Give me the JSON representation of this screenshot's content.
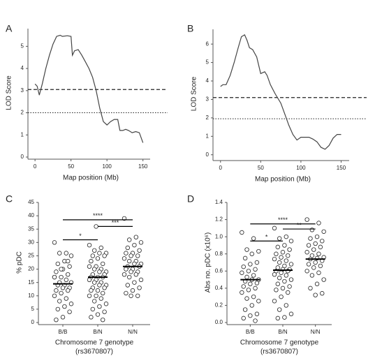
{
  "chart_data": [
    {
      "type": "line",
      "label": "A",
      "xlabel": "Map position (Mb)",
      "ylabel": "LOD Score",
      "x": [
        0,
        3,
        6,
        10,
        15,
        20,
        25,
        30,
        35,
        38,
        45,
        50,
        52,
        55,
        60,
        65,
        70,
        75,
        80,
        85,
        90,
        95,
        100,
        105,
        110,
        115,
        118,
        122,
        126,
        130,
        135,
        140,
        145,
        150
      ],
      "values": [
        3.3,
        3.2,
        2.8,
        3.3,
        4.0,
        4.6,
        5.1,
        5.45,
        5.5,
        5.45,
        5.48,
        5.45,
        4.6,
        4.8,
        4.85,
        4.6,
        4.3,
        4.0,
        3.6,
        3.0,
        2.2,
        1.6,
        1.45,
        1.6,
        1.7,
        1.7,
        1.2,
        1.2,
        1.25,
        1.2,
        1.1,
        1.15,
        1.1,
        0.65
      ],
      "color": "#444444",
      "xlim": [
        -5,
        160
      ],
      "xticks": [
        0,
        50,
        100,
        150
      ],
      "ylim": [
        0,
        5.8
      ],
      "yticks": [
        0,
        1,
        2,
        3,
        4,
        5
      ],
      "hlines": [
        {
          "y": 3.05,
          "style": "dashed"
        },
        {
          "y": 2.0,
          "style": "dotted"
        }
      ]
    },
    {
      "type": "line",
      "label": "B",
      "xlabel": "Map position (Mb)",
      "ylabel": "LOD Score",
      "x": [
        0,
        3,
        7,
        12,
        17,
        22,
        26,
        30,
        33,
        36,
        40,
        45,
        50,
        55,
        58,
        62,
        68,
        75,
        80,
        85,
        90,
        95,
        100,
        110,
        115,
        120,
        125,
        130,
        135,
        140,
        145,
        150
      ],
      "values": [
        3.7,
        3.8,
        3.8,
        4.3,
        5.0,
        5.8,
        6.4,
        6.5,
        6.2,
        5.8,
        5.7,
        5.3,
        4.4,
        4.5,
        4.3,
        3.8,
        3.3,
        2.8,
        2.2,
        1.6,
        1.1,
        0.8,
        0.95,
        0.95,
        0.85,
        0.7,
        0.4,
        0.3,
        0.5,
        0.9,
        1.1,
        1.1
      ],
      "color": "#444444",
      "xlim": [
        -5,
        160
      ],
      "xticks": [
        0,
        50,
        100,
        150
      ],
      "ylim": [
        -0.2,
        6.8
      ],
      "yticks": [
        0,
        1,
        2,
        3,
        4,
        5,
        6
      ],
      "hlines": [
        {
          "y": 3.1,
          "style": "dashed"
        },
        {
          "y": 1.95,
          "style": "dotted"
        }
      ]
    },
    {
      "type": "dot",
      "label": "C",
      "xlabel": "Chromosome 7 genotype",
      "xlabel2": "(rs3670807)",
      "ylabel": "% pDC",
      "categories": [
        "B/B",
        "B/N",
        "N/N"
      ],
      "values": [
        [
          30,
          26,
          26,
          25,
          23,
          22,
          21,
          20,
          19,
          18,
          17,
          17,
          16,
          15,
          15,
          14,
          14,
          13,
          13,
          12,
          12,
          11,
          10,
          9,
          8,
          7,
          6,
          5,
          4,
          2,
          1,
          23,
          20,
          17
        ],
        [
          29,
          28,
          27,
          26,
          26,
          25,
          25,
          24,
          23,
          22,
          21,
          21,
          20,
          20,
          19,
          19,
          18,
          18,
          17,
          17,
          17,
          16,
          16,
          15,
          15,
          14,
          14,
          13,
          13,
          12,
          12,
          11,
          10,
          10,
          9,
          8,
          7,
          6,
          5,
          4,
          3,
          2,
          1,
          36
        ],
        [
          39,
          32,
          31,
          30,
          29,
          28,
          27,
          26,
          26,
          25,
          25,
          24,
          23,
          23,
          22,
          22,
          21,
          21,
          20,
          20,
          19,
          19,
          18,
          18,
          17,
          16,
          15,
          14,
          13,
          12,
          11,
          10,
          10
        ]
      ],
      "means": [
        14.5,
        17,
        21
      ],
      "ylim": [
        0,
        45
      ],
      "yticks": [
        0,
        5,
        10,
        15,
        20,
        25,
        30,
        35,
        40,
        45
      ],
      "brackets": [
        {
          "between": [
            "B/B",
            "B/N"
          ],
          "y": 31,
          "label": "*"
        },
        {
          "between": [
            "B/B",
            "N/N"
          ],
          "y": 38.5,
          "label": "****"
        },
        {
          "between": [
            "B/N",
            "N/N"
          ],
          "y": 36,
          "label": "***"
        }
      ]
    },
    {
      "type": "dot",
      "label": "D",
      "xlabel": "Chromosome 7 genotype",
      "xlabel2": "(rs3670807)",
      "ylabel": "Abs no. pDC (x10⁶)",
      "categories": [
        "B/B",
        "B/N",
        "N/N"
      ],
      "values": [
        [
          1.05,
          0.98,
          0.85,
          0.83,
          0.8,
          0.75,
          0.7,
          0.68,
          0.65,
          0.62,
          0.6,
          0.58,
          0.55,
          0.53,
          0.5,
          0.5,
          0.48,
          0.46,
          0.45,
          0.42,
          0.4,
          0.38,
          0.35,
          0.3,
          0.28,
          0.25,
          0.2,
          0.15,
          0.1,
          0.08,
          0.05,
          0.02
        ],
        [
          1.1,
          1.0,
          0.98,
          0.95,
          0.9,
          0.88,
          0.85,
          0.82,
          0.8,
          0.78,
          0.76,
          0.74,
          0.72,
          0.7,
          0.68,
          0.66,
          0.64,
          0.62,
          0.62,
          0.6,
          0.6,
          0.58,
          0.56,
          0.55,
          0.52,
          0.5,
          0.48,
          0.45,
          0.42,
          0.4,
          0.38,
          0.35,
          0.3,
          0.25,
          0.2,
          0.15,
          0.1,
          0.06,
          0.05
        ],
        [
          1.2,
          1.16,
          1.08,
          1.06,
          1.0,
          0.98,
          0.95,
          0.92,
          0.9,
          0.88,
          0.85,
          0.82,
          0.8,
          0.78,
          0.76,
          0.75,
          0.74,
          0.72,
          0.7,
          0.68,
          0.66,
          0.64,
          0.6,
          0.58,
          0.55,
          0.5,
          0.45,
          0.4,
          0.34,
          0.32
        ]
      ],
      "means": [
        0.5,
        0.61,
        0.74
      ],
      "ylim": [
        0,
        1.4
      ],
      "yticks": [
        {
          "value": 0,
          "label": "0.0"
        },
        0.2,
        0.4,
        0.6,
        0.8,
        {
          "value": 1,
          "label": "1.0"
        },
        1.2,
        1.4
      ],
      "brackets": [
        {
          "between": [
            "B/B",
            "B/N"
          ],
          "y": 0.95,
          "label": "*"
        },
        {
          "between": [
            "B/B",
            "N/N"
          ],
          "y": 1.15,
          "label": "****"
        },
        {
          "between": [
            "B/N",
            "N/N"
          ],
          "y": 1.09,
          "label": "**"
        }
      ]
    }
  ]
}
